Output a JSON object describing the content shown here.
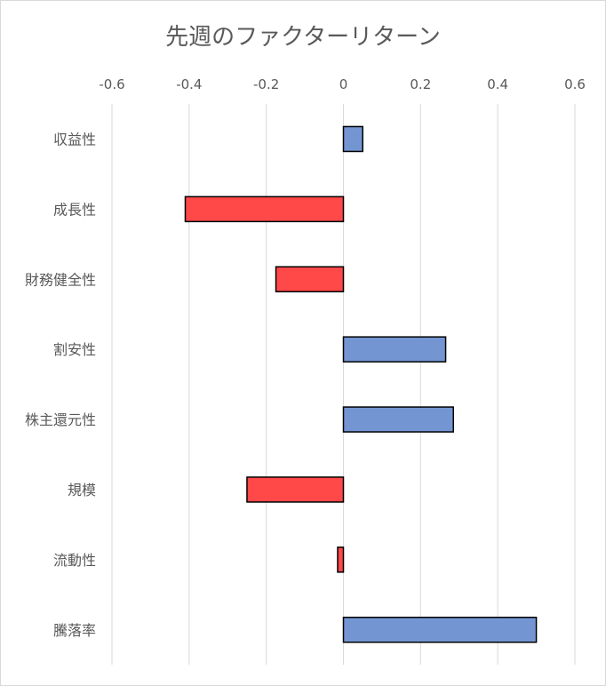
{
  "chart_data": {
    "type": "bar",
    "orientation": "horizontal",
    "title": "先週のファクターリターン",
    "categories": [
      "収益性",
      "成長性",
      "財務健全性",
      "割安性",
      "株主還元性",
      "規模",
      "流動性",
      "騰落率"
    ],
    "values": [
      0.05,
      -0.41,
      -0.175,
      0.265,
      0.285,
      -0.25,
      -0.015,
      0.5
    ],
    "xlim": [
      -0.6,
      0.6
    ],
    "xticks": [
      "-0.6",
      "-0.4",
      "-0.2",
      "0",
      "0.2",
      "0.4",
      "0.6"
    ],
    "xaxis_position": "top",
    "grid": true,
    "colors": {
      "positive": "#7396d3",
      "negative": "#ff4848",
      "edge": "#000000",
      "grid": "#d9d9d9"
    }
  }
}
